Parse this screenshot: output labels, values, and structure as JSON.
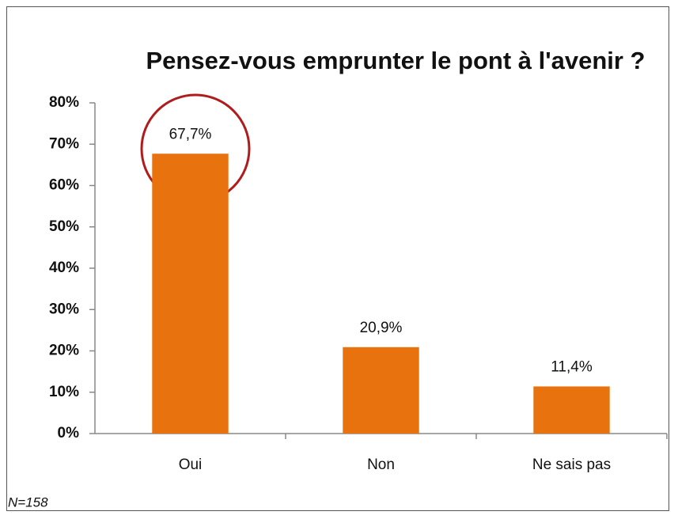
{
  "chart_data": {
    "type": "bar",
    "title": "Pensez-vous emprunter le pont à l'avenir ?",
    "categories": [
      "Oui",
      "Non",
      "Ne sais pas"
    ],
    "values": [
      67.7,
      20.9,
      11.4
    ],
    "value_labels": [
      "67,7%",
      "20,9%",
      "11,4%"
    ],
    "color": "#e8730e",
    "ylim": [
      0,
      80
    ],
    "yticks": [
      {
        "value": 0,
        "label": "0%"
      },
      {
        "value": 10,
        "label": "10%"
      },
      {
        "value": 20,
        "label": "20%"
      },
      {
        "value": 30,
        "label": "30%"
      },
      {
        "value": 40,
        "label": "40%"
      },
      {
        "value": 50,
        "label": "50%"
      },
      {
        "value": 60,
        "label": "60%"
      },
      {
        "value": 70,
        "label": "70%"
      },
      {
        "value": 80,
        "label": "80%"
      }
    ],
    "grid": false,
    "annotation": "N=158"
  }
}
